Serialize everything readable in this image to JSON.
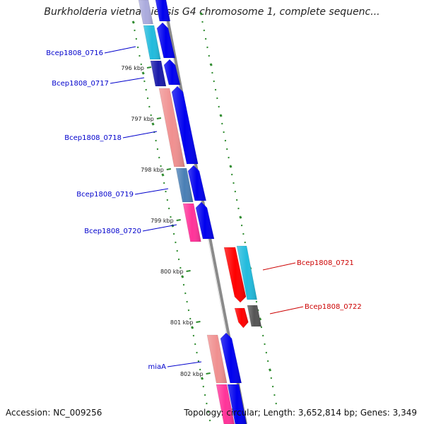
{
  "title": "Burkholderia vietnamiensis G4 chromosome 1, complete sequenc...",
  "footer": {
    "accession": "Accession: NC_009256",
    "summary": "Topology: circular; Length: 3,652,814 bp; Genes: 3,349"
  },
  "colors": {
    "backbone": "#8a8a8a",
    "tick": "#2e8b2e",
    "plus_strand_label": "#0000cc",
    "minus_strand_label": "#cc0000",
    "cds_forward": "#0000ee",
    "cds_reverse": "#ff0000"
  },
  "scale_labels": [
    "796 kbp",
    "797 kbp",
    "798 kbp",
    "799 kbp",
    "800 kbp",
    "801 kbp",
    "802 kbp"
  ],
  "genes": [
    {
      "label": "Bcep1808_0716",
      "strand": "forward",
      "color": "#22bbdd"
    },
    {
      "label": "Bcep1808_0717",
      "strand": "forward",
      "color": "#1a1aaa"
    },
    {
      "label": "Bcep1808_0718",
      "strand": "forward",
      "color": "#f09090"
    },
    {
      "label": "Bcep1808_0719",
      "strand": "forward",
      "color": "#4a7fb5"
    },
    {
      "label": "Bcep1808_0720",
      "strand": "forward",
      "color": "#ff3399"
    },
    {
      "label": "Bcep1808_0721",
      "strand": "reverse",
      "color": "#22bbdd"
    },
    {
      "label": "Bcep1808_0722",
      "strand": "reverse",
      "color": "#555555"
    },
    {
      "label": "miaA",
      "strand": "forward",
      "color": "#f09090"
    }
  ]
}
